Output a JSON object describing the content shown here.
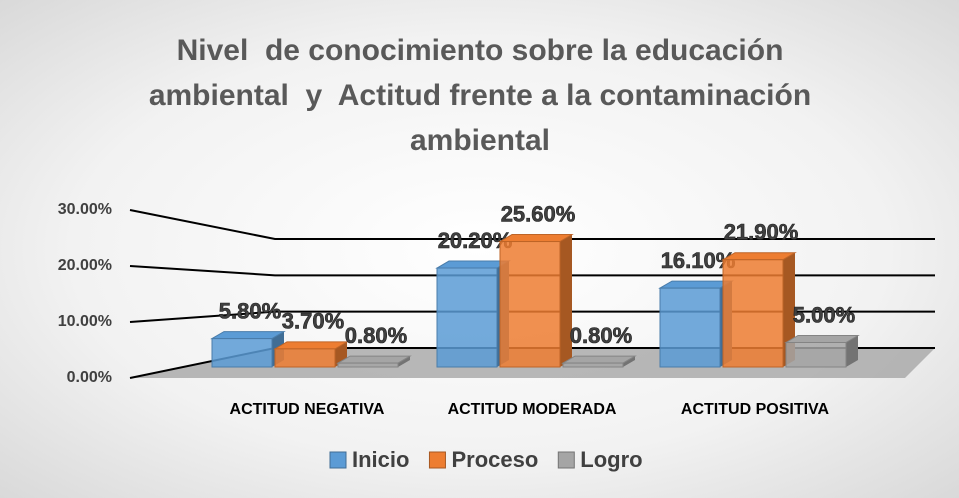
{
  "chart_data": {
    "type": "bar3d",
    "title": "Nivel  de conocimiento sobre la educación ambiental  y  Actitud frente a la contaminación ambiental",
    "categories": [
      "ACTITUD NEGATIVA",
      "ACTITUD MODERADA",
      "ACTITUD POSITIVA"
    ],
    "series": [
      {
        "name": "Inicio",
        "color": "#5b9bd5",
        "values": [
          5.8,
          20.2,
          16.1
        ],
        "value_labels": [
          "5.80%",
          "20.20%",
          "16.10%"
        ]
      },
      {
        "name": "Proceso",
        "color": "#ed7d31",
        "values": [
          3.7,
          25.6,
          21.9
        ],
        "value_labels": [
          "3.70%",
          "25.60%",
          "21.90%"
        ]
      },
      {
        "name": "Logro",
        "color": "#a5a5a5",
        "values": [
          0.8,
          0.8,
          5.0
        ],
        "value_labels": [
          "0.80%",
          "0.80%",
          "5.00%"
        ]
      }
    ],
    "ylim": [
      0,
      30
    ],
    "yticks": [
      {
        "value": 0,
        "label": "0.00%"
      },
      {
        "value": 10,
        "label": "10.00%"
      },
      {
        "value": 20,
        "label": "20.00%"
      },
      {
        "value": 30,
        "label": "30.00%"
      }
    ],
    "grid": true,
    "legend": "bottom"
  }
}
